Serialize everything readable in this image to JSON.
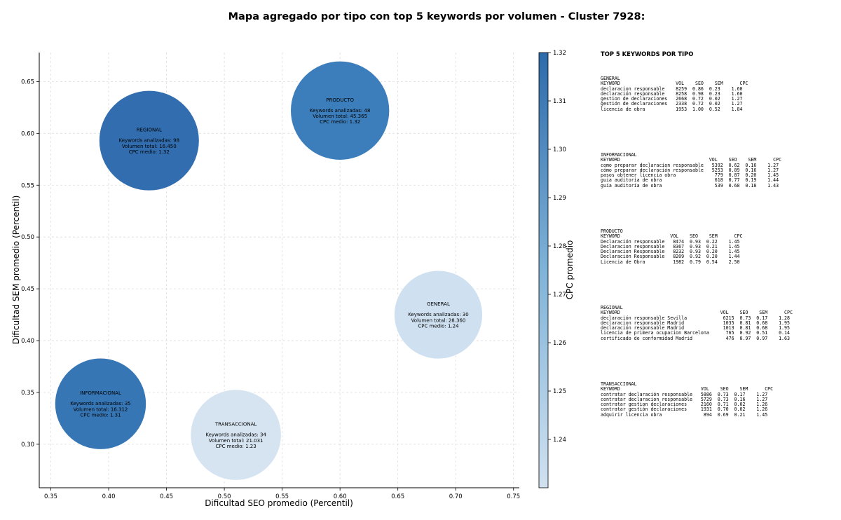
{
  "title": "Mapa agregado por tipo con top 5 keywords por volumen - Cluster 7928:",
  "chart_data": {
    "type": "scatter",
    "subtype": "bubble",
    "xlabel": "Dificultad SEO promedio (Percentil)",
    "ylabel": "Dificultad SEM promedio (Percentil)",
    "xlim": [
      0.34,
      0.755
    ],
    "ylim": [
      0.258,
      0.678
    ],
    "xticks": [
      "0.35",
      "0.40",
      "0.45",
      "0.50",
      "0.55",
      "0.60",
      "0.65",
      "0.70",
      "0.75"
    ],
    "yticks": [
      "0.30",
      "0.35",
      "0.40",
      "0.45",
      "0.50",
      "0.55",
      "0.60",
      "0.65"
    ],
    "grid": true,
    "colorbar": {
      "label": "CPC promedio",
      "min": 1.23,
      "max": 1.32,
      "ticks": [
        "1.24",
        "1.25",
        "1.26",
        "1.27",
        "1.28",
        "1.29",
        "1.30",
        "1.31",
        "1.32"
      ],
      "color_low": "#d1e1f0",
      "color_high": "#2d6aaa"
    },
    "points": [
      {
        "label": "PRODUCTO",
        "x": 0.6,
        "y": 0.622,
        "keywords": 48,
        "volume": "45.365",
        "cpc": 1.32,
        "lines": [
          "Keywords analizadas: 48",
          "Volumen total: 45.365",
          "CPC medio: 1.32"
        ],
        "color": "#3579b9"
      },
      {
        "label": "REGIONAL",
        "x": 0.435,
        "y": 0.593,
        "keywords": 98,
        "volume": "16.450",
        "cpc": 1.32,
        "lines": [
          "Keywords analizadas: 98",
          "Volumen total: 16.450",
          "CPC medio: 1.32"
        ],
        "color": "#2a69ac"
      },
      {
        "label": "GENERAL",
        "x": 0.685,
        "y": 0.425,
        "keywords": 30,
        "volume": "28.360",
        "cpc": 1.24,
        "lines": [
          "Keywords analizadas: 30",
          "Volumen total: 28.360",
          "CPC medio: 1.24"
        ],
        "color": "#cedff0"
      },
      {
        "label": "INFORMACIONAL",
        "x": 0.393,
        "y": 0.339,
        "keywords": 35,
        "volume": "16.312",
        "cpc": 1.31,
        "lines": [
          "Keywords analizadas: 35",
          "Volumen total: 16.312",
          "CPC medio: 1.31"
        ],
        "color": "#2f71b3"
      },
      {
        "label": "TRANSACCIONAL",
        "x": 0.51,
        "y": 0.309,
        "keywords": 34,
        "volume": "21.031",
        "cpc": 1.23,
        "lines": [
          "Keywords analizadas: 34",
          "Volumen total: 21.031",
          "CPC medio: 1.23"
        ],
        "color": "#d5e3f1"
      }
    ]
  },
  "side_panel": {
    "title": "TOP 5 KEYWORDS POR TIPO",
    "blocks": [
      {
        "type": "GENERAL",
        "lines": [
          "KEYWORD                    VOL    SEO    SEM      CPC",
          "declaracion responsable    8259  0.86  0.23    1.60",
          "declaración responsable    8258  0.98  0.23    1.60",
          "gestion de declaraciones   2668  0.72  0.02    1.27",
          "gestión de declaraciones   2338  0.72  0.02    1.27",
          "licencia de obra           1953  1.00  0.52    1.84"
        ]
      },
      {
        "type": "INFORMACIONAL",
        "lines": [
          "KEYWORD                                VOL    SEO    SEM      CPC",
          "como preparar declaracion responsable   5392  0.62  0.16    1.27",
          "cómo preparar declaración responsable   5253  0.89  0.16    1.27",
          "pasos obtener licencia obra              779  0.87  0.20    1.45",
          "guia auditoria de obra                   618  0.77  0.19    1.44",
          "guía auditoría de obra                   539  0.68  0.18    1.43"
        ]
      },
      {
        "type": "PRODUCTO",
        "lines": [
          "KEYWORD                  VOL    SEO    SEM      CPC",
          "Declaración responsable   8474  0.93  0.22    1.45",
          "Declaracion responsable   8367  0.93  0.21    1.45",
          "Declaracion Responsable   8232  0.93  0.20    1.45",
          "Declaración Responsable   8209  0.92  0.20    1.44",
          "Licencia de Obra          1982  0.79  0.54    2.50"
        ]
      },
      {
        "type": "REGIONAL",
        "lines": [
          "KEYWORD                                    VOL    SEO    SEM      CPC",
          "declaración responsable Sevilla             6215  0.73  0.17    1.28",
          "declaracion responsable Madrid              1035  0.81  0.68    1.95",
          "declaración responsable Madrid              1013  0.81  0.68    1.95",
          "licencia de primera ocupacion Barcelona      765  0.92  0.51    0.14",
          "certificado de conformidad Madrid            476  0.97  0.97    1.63"
        ]
      },
      {
        "type": "TRANSACCIONAL",
        "lines": [
          "KEYWORD                             VOL    SEO    SEM      CPC",
          "contratar declaración responsable   5886  0.73  0.17    1.27",
          "contratar declaracion responsable   5729  0.73  0.16    1.27",
          "contratar gestion declaraciones     2160  0.71  0.02    1.26",
          "contratar gestión declaraciones     1931  0.70  0.02    1.26",
          "adquirir licencia obra               894  0.69  0.21    1.45"
        ]
      }
    ]
  }
}
